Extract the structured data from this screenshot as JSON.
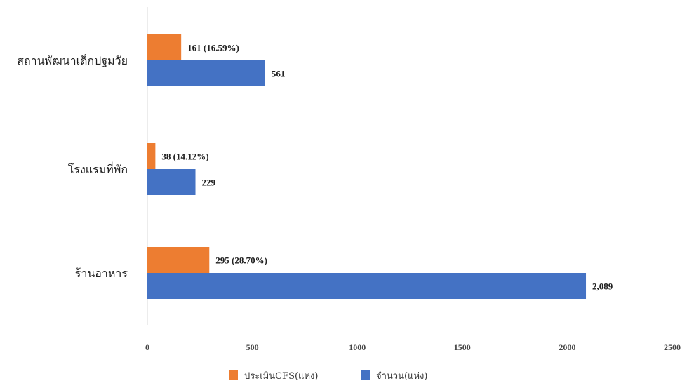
{
  "chart_data": {
    "type": "bar",
    "orientation": "horizontal",
    "categories": [
      "สถานพัฒนาเด็กปฐมวัย",
      "โรงแรมที่พัก",
      "ร้านอาหาร"
    ],
    "series": [
      {
        "name": "ประเมินCFS(แห่ง)",
        "color": "#ED7D31",
        "values": [
          161,
          38,
          295
        ],
        "labels": [
          "161 (16.59%)",
          "38 (14.12%)",
          "295 (28.70%)"
        ]
      },
      {
        "name": "จำนวน(แห่ง)",
        "color": "#4472C4",
        "values": [
          561,
          229,
          2089
        ],
        "labels": [
          "561",
          "229",
          "2,089"
        ]
      }
    ],
    "xlim": [
      0,
      2500
    ],
    "xticks": [
      0,
      500,
      1000,
      1500,
      2000,
      2500
    ],
    "xtick_labels": [
      "0",
      "500",
      "1000",
      "1500",
      "2000",
      "2500"
    ],
    "grid": false,
    "legend_position": "bottom"
  }
}
